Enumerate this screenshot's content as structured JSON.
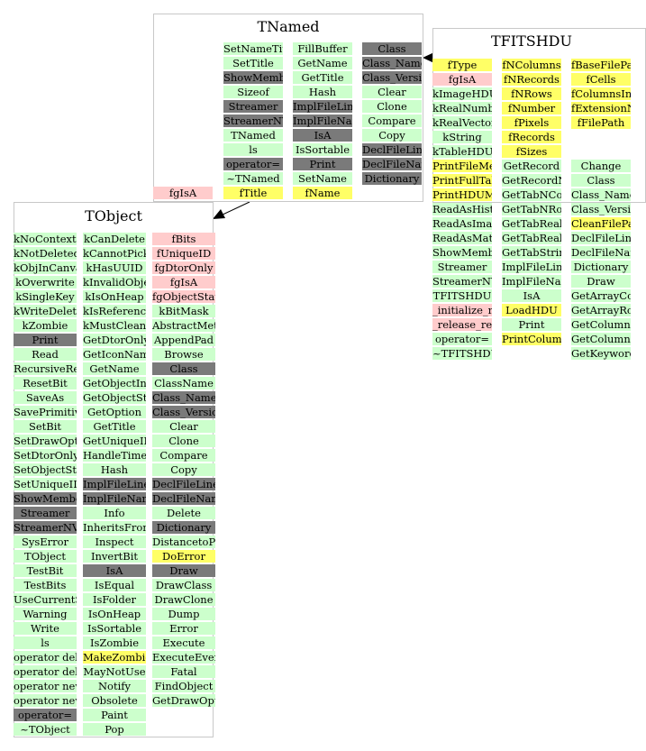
{
  "colors": {
    "method": "#ccffcc",
    "dark": "#7a7a7a",
    "member": "#ffff66",
    "pink": "#ffcccc",
    "border": "#c8c8c8"
  },
  "classes": [
    {
      "name": "TNamed",
      "columns": [
        [
          {
            "t": "SetNameTitle",
            "k": "method"
          },
          {
            "t": "SetTitle",
            "k": "method"
          },
          {
            "t": "ShowMembers",
            "k": "dark"
          },
          {
            "t": "Sizeof",
            "k": "method"
          },
          {
            "t": "Streamer",
            "k": "dark"
          },
          {
            "t": "StreamerNVirtual",
            "k": "dark"
          },
          {
            "t": "TNamed",
            "k": "method"
          },
          {
            "t": "ls",
            "k": "method"
          },
          {
            "t": "operator=",
            "k": "dark"
          },
          {
            "t": "~TNamed",
            "k": "method"
          },
          {
            "t": "fTitle",
            "k": "member"
          }
        ],
        [
          {
            "t": "FillBuffer",
            "k": "method"
          },
          {
            "t": "GetName",
            "k": "method"
          },
          {
            "t": "GetTitle",
            "k": "method"
          },
          {
            "t": "Hash",
            "k": "method"
          },
          {
            "t": "ImplFileLine",
            "k": "dark"
          },
          {
            "t": "ImplFileName",
            "k": "dark"
          },
          {
            "t": "IsA",
            "k": "dark"
          },
          {
            "t": "IsSortable",
            "k": "method"
          },
          {
            "t": "Print",
            "k": "dark"
          },
          {
            "t": "SetName",
            "k": "method"
          },
          {
            "t": "fName",
            "k": "member"
          }
        ],
        [
          {
            "t": "Class",
            "k": "dark"
          },
          {
            "t": "Class_Name",
            "k": "dark"
          },
          {
            "t": "Class_Version",
            "k": "dark"
          },
          {
            "t": "Clear",
            "k": "method"
          },
          {
            "t": "Clone",
            "k": "method"
          },
          {
            "t": "Compare",
            "k": "method"
          },
          {
            "t": "Copy",
            "k": "method"
          },
          {
            "t": "DeclFileLine",
            "k": "dark"
          },
          {
            "t": "DeclFileName",
            "k": "dark"
          },
          {
            "t": "Dictionary",
            "k": "dark"
          }
        ]
      ],
      "outside": [
        {
          "t": "fgIsA",
          "k": "pink"
        }
      ]
    },
    {
      "name": "TFITSHDU",
      "columns": [
        [
          {
            "t": "fType",
            "k": "member"
          },
          {
            "t": "fgIsA",
            "k": "pink"
          },
          {
            "t": "kImageHDU",
            "k": "method"
          },
          {
            "t": "kRealNumber",
            "k": "method"
          },
          {
            "t": "kRealVector",
            "k": "method"
          },
          {
            "t": "kString",
            "k": "method"
          },
          {
            "t": "kTableHDU",
            "k": "method"
          },
          {
            "t": "PrintFileMetadata",
            "k": "member"
          },
          {
            "t": "PrintFullTable",
            "k": "member"
          },
          {
            "t": "PrintHDUMetadata",
            "k": "member"
          },
          {
            "t": "ReadAsHistogram",
            "k": "method"
          },
          {
            "t": "ReadAsImage",
            "k": "method"
          },
          {
            "t": "ReadAsMatrix",
            "k": "method"
          },
          {
            "t": "ShowMembers",
            "k": "method"
          },
          {
            "t": "Streamer",
            "k": "method"
          },
          {
            "t": "StreamerNVirtual",
            "k": "method"
          },
          {
            "t": "TFITSHDU",
            "k": "method"
          },
          {
            "t": "_initialize_me",
            "k": "pink"
          },
          {
            "t": "_release_resources",
            "k": "pink"
          },
          {
            "t": "operator=",
            "k": "method"
          },
          {
            "t": "~TFITSHDU",
            "k": "method"
          }
        ],
        [
          {
            "t": "fNColumns",
            "k": "member"
          },
          {
            "t": "fNRecords",
            "k": "member"
          },
          {
            "t": "fNRows",
            "k": "member"
          },
          {
            "t": "fNumber",
            "k": "member"
          },
          {
            "t": "fPixels",
            "k": "member"
          },
          {
            "t": "fRecords",
            "k": "member"
          },
          {
            "t": "fSizes",
            "k": "member"
          },
          {
            "t": "GetRecord",
            "k": "method"
          },
          {
            "t": "GetRecordNumber",
            "k": "method"
          },
          {
            "t": "GetTabNColumns",
            "k": "method"
          },
          {
            "t": "GetTabNRows",
            "k": "method"
          },
          {
            "t": "GetTabRealVectorCells",
            "k": "method"
          },
          {
            "t": "GetTabRealVectorColumn",
            "k": "method"
          },
          {
            "t": "GetTabStringColumn",
            "k": "method"
          },
          {
            "t": "ImplFileLine",
            "k": "method"
          },
          {
            "t": "ImplFileName",
            "k": "method"
          },
          {
            "t": "IsA",
            "k": "method"
          },
          {
            "t": "LoadHDU",
            "k": "member"
          },
          {
            "t": "Print",
            "k": "method"
          },
          {
            "t": "PrintColumnInfo",
            "k": "member"
          }
        ],
        [
          {
            "t": "fBaseFilePath",
            "k": "member"
          },
          {
            "t": "fCells",
            "k": "member"
          },
          {
            "t": "fColumnsInfo",
            "k": "member"
          },
          {
            "t": "fExtensionName",
            "k": "member"
          },
          {
            "t": "fFilePath",
            "k": "member"
          },
          {
            "t": "",
            "k": "none"
          },
          {
            "t": "",
            "k": "none"
          },
          {
            "t": "Change",
            "k": "method"
          },
          {
            "t": "Class",
            "k": "method"
          },
          {
            "t": "Class_Name",
            "k": "method"
          },
          {
            "t": "Class_Version",
            "k": "method"
          },
          {
            "t": "CleanFilePath",
            "k": "member"
          },
          {
            "t": "DeclFileLine",
            "k": "method"
          },
          {
            "t": "DeclFileName",
            "k": "method"
          },
          {
            "t": "Dictionary",
            "k": "method"
          },
          {
            "t": "Draw",
            "k": "method"
          },
          {
            "t": "GetArrayColumn",
            "k": "method"
          },
          {
            "t": "GetArrayRow",
            "k": "method"
          },
          {
            "t": "GetColumnName",
            "k": "method"
          },
          {
            "t": "GetColumnNumber",
            "k": "method"
          },
          {
            "t": "GetKeywordValue",
            "k": "method"
          }
        ]
      ],
      "outside": []
    },
    {
      "name": "TObject",
      "columns": [
        [
          {
            "t": "kNoContextMenu",
            "k": "method"
          },
          {
            "t": "kNotDeleted",
            "k": "method"
          },
          {
            "t": "kObjInCanvas",
            "k": "method"
          },
          {
            "t": "kOverwrite",
            "k": "method"
          },
          {
            "t": "kSingleKey",
            "k": "method"
          },
          {
            "t": "kWriteDelete",
            "k": "method"
          },
          {
            "t": "kZombie",
            "k": "method"
          },
          {
            "t": "Print",
            "k": "dark"
          },
          {
            "t": "Read",
            "k": "method"
          },
          {
            "t": "RecursiveRemove",
            "k": "method"
          },
          {
            "t": "ResetBit",
            "k": "method"
          },
          {
            "t": "SaveAs",
            "k": "method"
          },
          {
            "t": "SavePrimitive",
            "k": "method"
          },
          {
            "t": "SetBit",
            "k": "method"
          },
          {
            "t": "SetDrawOption",
            "k": "method"
          },
          {
            "t": "SetDtorOnly",
            "k": "method"
          },
          {
            "t": "SetObjectStat",
            "k": "method"
          },
          {
            "t": "SetUniqueID",
            "k": "method"
          },
          {
            "t": "ShowMembers",
            "k": "dark"
          },
          {
            "t": "Streamer",
            "k": "dark"
          },
          {
            "t": "StreamerNVirtual",
            "k": "dark"
          },
          {
            "t": "SysError",
            "k": "method"
          },
          {
            "t": "TObject",
            "k": "method"
          },
          {
            "t": "TestBit",
            "k": "method"
          },
          {
            "t": "TestBits",
            "k": "method"
          },
          {
            "t": "UseCurrentStyle",
            "k": "method"
          },
          {
            "t": "Warning",
            "k": "method"
          },
          {
            "t": "Write",
            "k": "method"
          },
          {
            "t": "ls",
            "k": "method"
          },
          {
            "t": "operator delete",
            "k": "method"
          },
          {
            "t": "operator delete[]",
            "k": "method"
          },
          {
            "t": "operator new",
            "k": "method"
          },
          {
            "t": "operator new[]",
            "k": "method"
          },
          {
            "t": "operator=",
            "k": "dark"
          },
          {
            "t": "~TObject",
            "k": "method"
          }
        ],
        [
          {
            "t": "kCanDelete",
            "k": "method"
          },
          {
            "t": "kCannotPick",
            "k": "method"
          },
          {
            "t": "kHasUUID",
            "k": "method"
          },
          {
            "t": "kInvalidObject",
            "k": "method"
          },
          {
            "t": "kIsOnHeap",
            "k": "method"
          },
          {
            "t": "kIsReferenced",
            "k": "method"
          },
          {
            "t": "kMustCleanup",
            "k": "method"
          },
          {
            "t": "GetDtorOnly",
            "k": "method"
          },
          {
            "t": "GetIconName",
            "k": "method"
          },
          {
            "t": "GetName",
            "k": "method"
          },
          {
            "t": "GetObjectInfo",
            "k": "method"
          },
          {
            "t": "GetObjectStat",
            "k": "method"
          },
          {
            "t": "GetOption",
            "k": "method"
          },
          {
            "t": "GetTitle",
            "k": "method"
          },
          {
            "t": "GetUniqueID",
            "k": "method"
          },
          {
            "t": "HandleTimer",
            "k": "method"
          },
          {
            "t": "Hash",
            "k": "method"
          },
          {
            "t": "ImplFileLine",
            "k": "dark"
          },
          {
            "t": "ImplFileName",
            "k": "dark"
          },
          {
            "t": "Info",
            "k": "method"
          },
          {
            "t": "InheritsFrom",
            "k": "method"
          },
          {
            "t": "Inspect",
            "k": "method"
          },
          {
            "t": "InvertBit",
            "k": "method"
          },
          {
            "t": "IsA",
            "k": "dark"
          },
          {
            "t": "IsEqual",
            "k": "method"
          },
          {
            "t": "IsFolder",
            "k": "method"
          },
          {
            "t": "IsOnHeap",
            "k": "method"
          },
          {
            "t": "IsSortable",
            "k": "method"
          },
          {
            "t": "IsZombie",
            "k": "method"
          },
          {
            "t": "MakeZombie",
            "k": "member"
          },
          {
            "t": "MayNotUse",
            "k": "method"
          },
          {
            "t": "Notify",
            "k": "method"
          },
          {
            "t": "Obsolete",
            "k": "method"
          },
          {
            "t": "Paint",
            "k": "method"
          },
          {
            "t": "Pop",
            "k": "method"
          }
        ],
        [
          {
            "t": "fBits",
            "k": "pink"
          },
          {
            "t": "fUniqueID",
            "k": "pink"
          },
          {
            "t": "fgDtorOnly",
            "k": "pink"
          },
          {
            "t": "fgIsA",
            "k": "pink"
          },
          {
            "t": "fgObjectStat",
            "k": "pink"
          },
          {
            "t": "kBitMask",
            "k": "method"
          },
          {
            "t": "AbstractMethod",
            "k": "method"
          },
          {
            "t": "AppendPad",
            "k": "method"
          },
          {
            "t": "Browse",
            "k": "method"
          },
          {
            "t": "Class",
            "k": "dark"
          },
          {
            "t": "ClassName",
            "k": "method"
          },
          {
            "t": "Class_Name",
            "k": "dark"
          },
          {
            "t": "Class_Version",
            "k": "dark"
          },
          {
            "t": "Clear",
            "k": "method"
          },
          {
            "t": "Clone",
            "k": "method"
          },
          {
            "t": "Compare",
            "k": "method"
          },
          {
            "t": "Copy",
            "k": "method"
          },
          {
            "t": "DeclFileLine",
            "k": "dark"
          },
          {
            "t": "DeclFileName",
            "k": "dark"
          },
          {
            "t": "Delete",
            "k": "method"
          },
          {
            "t": "Dictionary",
            "k": "dark"
          },
          {
            "t": "DistancetoPrimitive",
            "k": "method"
          },
          {
            "t": "DoError",
            "k": "member"
          },
          {
            "t": "Draw",
            "k": "dark"
          },
          {
            "t": "DrawClass",
            "k": "method"
          },
          {
            "t": "DrawClone",
            "k": "method"
          },
          {
            "t": "Dump",
            "k": "method"
          },
          {
            "t": "Error",
            "k": "method"
          },
          {
            "t": "Execute",
            "k": "method"
          },
          {
            "t": "ExecuteEvent",
            "k": "method"
          },
          {
            "t": "Fatal",
            "k": "method"
          },
          {
            "t": "FindObject",
            "k": "method"
          },
          {
            "t": "GetDrawOption",
            "k": "method"
          }
        ]
      ],
      "outside": []
    }
  ]
}
